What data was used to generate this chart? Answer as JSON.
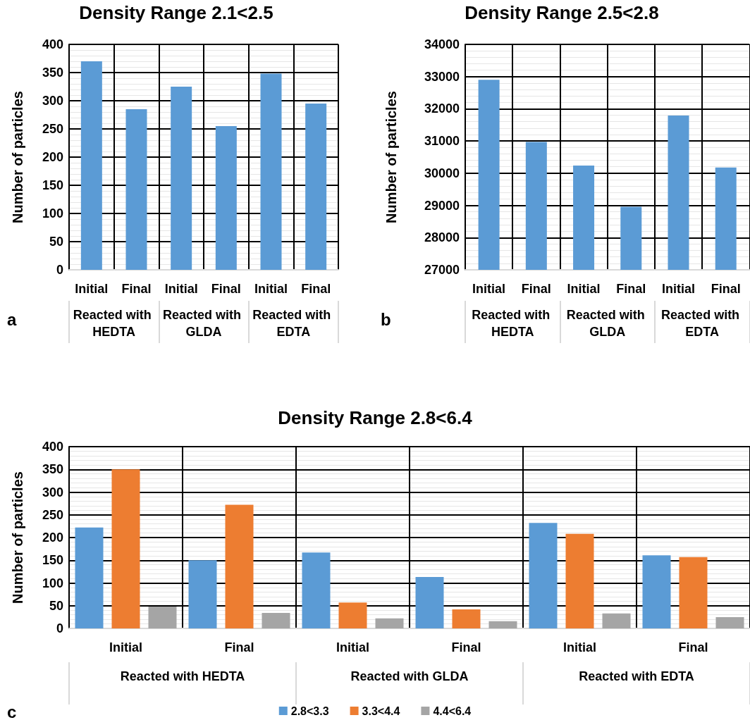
{
  "chart_data": [
    {
      "type": "bar",
      "title": "Density Range 2.1<2.5",
      "ylabel": "Number of particles",
      "categories": [
        "Initial",
        "Final",
        "Initial",
        "Final",
        "Initial",
        "Final"
      ],
      "series": [
        {
          "color": "#5b9bd5",
          "values": [
            370,
            285,
            325,
            255,
            348,
            295
          ]
        }
      ],
      "ylim": [
        0,
        400
      ],
      "yticks": [
        0,
        50,
        100,
        150,
        200,
        250,
        300,
        350,
        400
      ],
      "grid": true,
      "annotations": [
        "Reacted with HEDTA",
        "Reacted with GLDA",
        "Reacted with EDTA",
        "a"
      ]
    },
    {
      "type": "bar",
      "title": "Density Range 2.5<2.8",
      "ylabel": "Number of particles",
      "categories": [
        "Initial",
        "Final",
        "Initial",
        "Final",
        "Initial",
        "Final"
      ],
      "series": [
        {
          "color": "#5b9bd5",
          "values": [
            32900,
            30970,
            30240,
            28960,
            31790,
            30180
          ]
        }
      ],
      "ylim": [
        27000,
        34000
      ],
      "yticks": [
        27000,
        28000,
        29000,
        30000,
        31000,
        32000,
        33000,
        34000
      ],
      "grid": true,
      "annotations": [
        "Reacted with HEDTA",
        "Reacted with GLDA",
        "Reacted with EDTA",
        "b"
      ]
    },
    {
      "type": "bar",
      "title": "Density Range 2.8<6.4",
      "ylabel": "Number of particles",
      "categories": [
        "Initial",
        "Final",
        "Initial",
        "Final",
        "Initial",
        "Final"
      ],
      "series": [
        {
          "name": "2.8<3.3",
          "color": "#5b9bd5",
          "values": [
            222,
            150,
            167,
            113,
            232,
            161
          ]
        },
        {
          "name": "3.3<4.4",
          "color": "#ed7d31",
          "values": [
            350,
            272,
            57,
            42,
            208,
            157
          ]
        },
        {
          "name": "4.4<6.4",
          "color": "#a5a5a5",
          "values": [
            48,
            34,
            22,
            16,
            33,
            25
          ]
        }
      ],
      "ylim": [
        0,
        400
      ],
      "yticks": [
        0,
        50,
        100,
        150,
        200,
        250,
        300,
        350,
        400
      ],
      "grid": true,
      "legend": "bottom",
      "annotations": [
        "Reacted with HEDTA",
        "Reacted with GLDA",
        "Reacted with EDTA",
        "c"
      ]
    }
  ]
}
